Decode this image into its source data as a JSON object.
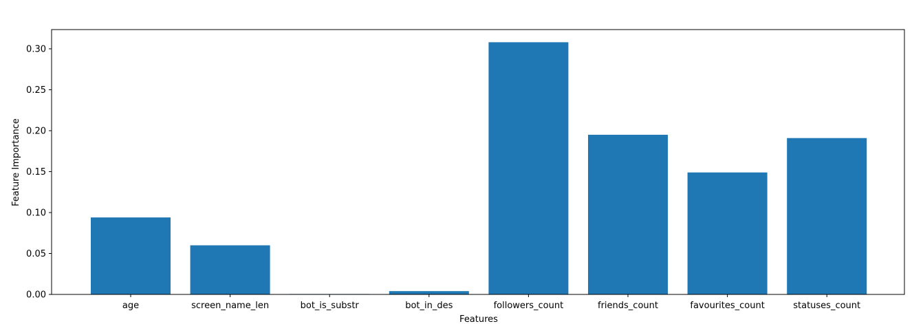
{
  "chart_data": {
    "type": "bar",
    "categories": [
      "age",
      "screen_name_len",
      "bot_is_substr",
      "bot_in_des",
      "followers_count",
      "friends_count",
      "favourites_count",
      "statuses_count"
    ],
    "values": [
      0.094,
      0.06,
      0.0005,
      0.004,
      0.308,
      0.195,
      0.149,
      0.191
    ],
    "xlabel": "Features",
    "ylabel": "Feature Importance",
    "ylim": [
      0,
      0.3235
    ],
    "yticks": [
      "0.00",
      "0.05",
      "0.10",
      "0.15",
      "0.20",
      "0.25",
      "0.30"
    ],
    "bar_color": "#1f77b4",
    "grid": false,
    "legend": false
  }
}
